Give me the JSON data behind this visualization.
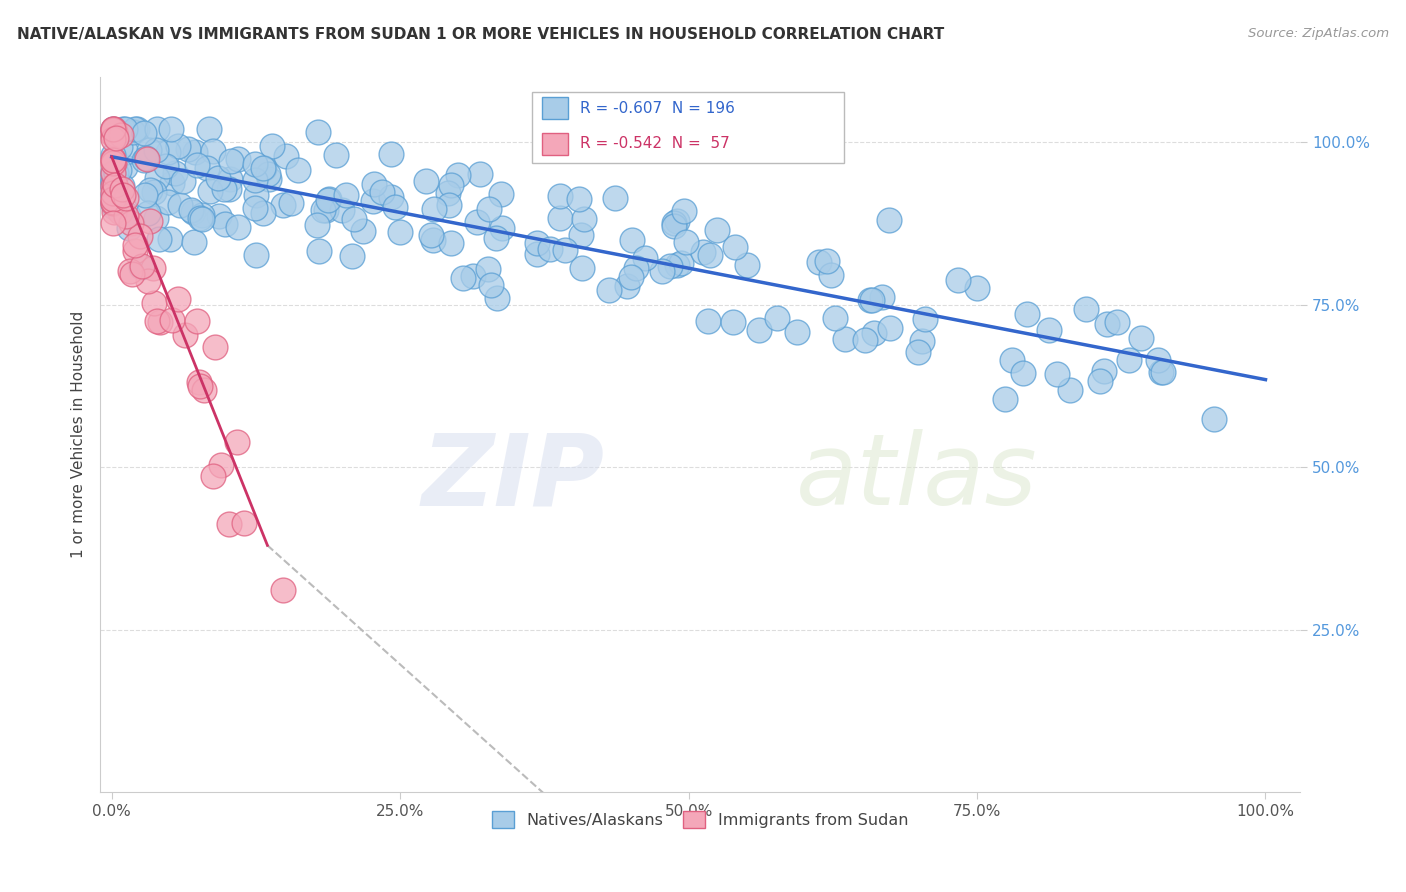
{
  "title": "NATIVE/ALASKAN VS IMMIGRANTS FROM SUDAN 1 OR MORE VEHICLES IN HOUSEHOLD CORRELATION CHART",
  "source": "Source: ZipAtlas.com",
  "ylabel": "1 or more Vehicles in Household",
  "background_color": "#ffffff",
  "blue_R": -0.607,
  "blue_N": 196,
  "pink_R": -0.542,
  "pink_N": 57,
  "blue_color": "#a8cce8",
  "pink_color": "#f4a7b9",
  "blue_edge_color": "#5a9fd4",
  "pink_edge_color": "#e06080",
  "blue_line_color": "#3366cc",
  "pink_line_color": "#cc3366",
  "legend_label_blue": "Natives/Alaskans",
  "legend_label_pink": "Immigrants from Sudan",
  "xtick_labels": [
    "0.0%",
    "25.0%",
    "50.0%",
    "75.0%",
    "100.0%"
  ],
  "xtick_positions": [
    0.0,
    0.25,
    0.5,
    0.75,
    1.0
  ],
  "ytick_labels": [
    "100.0%",
    "75.0%",
    "50.0%",
    "25.0%"
  ],
  "ytick_positions": [
    1.0,
    0.75,
    0.5,
    0.25
  ],
  "blue_trendline": [
    0.0,
    1.0,
    0.978,
    0.635
  ],
  "pink_trendline_solid": [
    0.0,
    0.135,
    0.978,
    0.38
  ],
  "pink_trendline_dashed": [
    0.135,
    0.75,
    0.38,
    -0.6
  ]
}
